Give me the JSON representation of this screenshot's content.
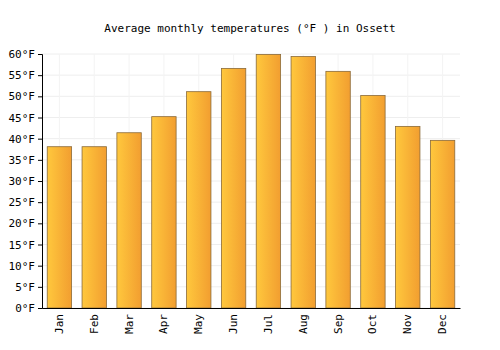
{
  "chart_data": {
    "type": "bar",
    "title": "Average monthly temperatures (°F ) in Ossett",
    "categories": [
      "Jan",
      "Feb",
      "Mar",
      "Apr",
      "May",
      "Jun",
      "Jul",
      "Aug",
      "Sep",
      "Oct",
      "Nov",
      "Dec"
    ],
    "values": [
      38.1,
      38.1,
      41.4,
      45.2,
      51.1,
      56.6,
      59.9,
      59.4,
      55.9,
      50.2,
      42.9,
      39.6
    ],
    "color": "#ffa733",
    "ylim": [
      0,
      60
    ],
    "yticks": [
      {
        "value": 0,
        "label": "0°F"
      },
      {
        "value": 5,
        "label": "5°F"
      },
      {
        "value": 10,
        "label": "10°F"
      },
      {
        "value": 15,
        "label": "15°F"
      },
      {
        "value": 20,
        "label": "20°F"
      },
      {
        "value": 25,
        "label": "25°F"
      },
      {
        "value": 30,
        "label": "30°F"
      },
      {
        "value": 35,
        "label": "35°F"
      },
      {
        "value": 40,
        "label": "40°F"
      },
      {
        "value": 45,
        "label": "45°F"
      },
      {
        "value": 50,
        "label": "50°F"
      },
      {
        "value": 55,
        "label": "55°F"
      },
      {
        "value": 60,
        "label": "60°F"
      }
    ],
    "grid": true
  }
}
